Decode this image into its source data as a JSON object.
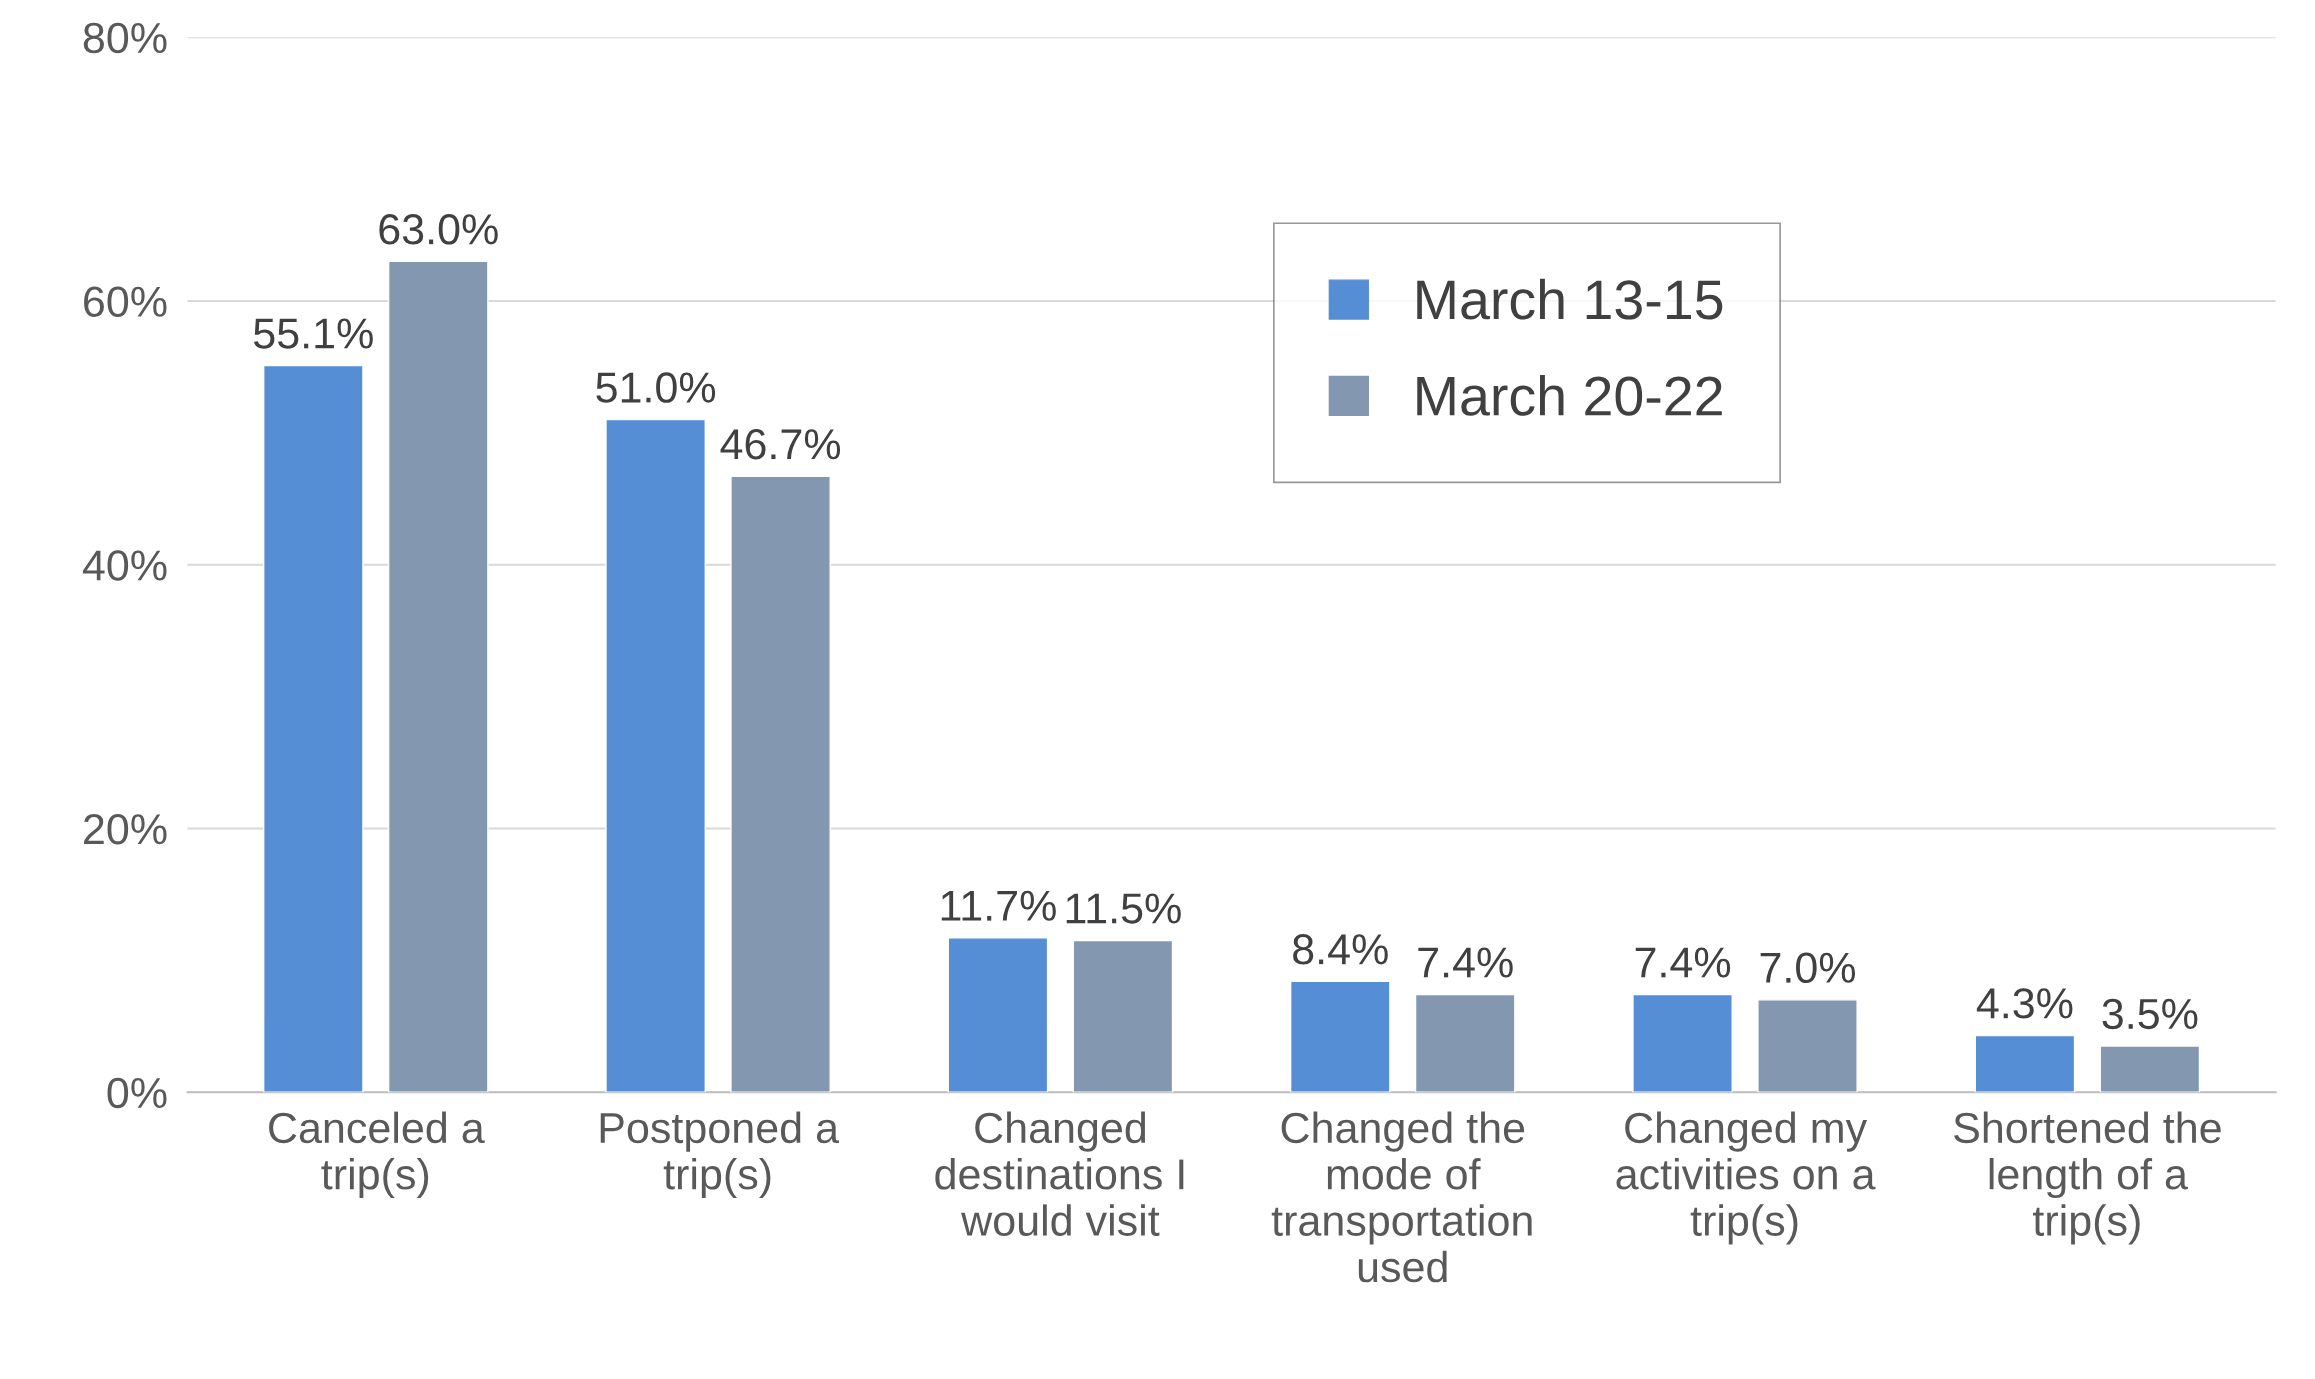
{
  "chart_data": {
    "type": "bar",
    "categories": [
      "Canceled a\ntrip(s)",
      "Postponed a\ntrip(s)",
      "Changed\ndestinations I\nwould visit",
      "Changed the\nmode of\ntransportation\nused",
      "Changed my\nactivities on a\ntrip(s)",
      "Shortened the\nlength of a\ntrip(s)"
    ],
    "series": [
      {
        "name": "March 13-15",
        "color": "#558ed5",
        "values": [
          55.1,
          51.0,
          11.7,
          8.4,
          7.4,
          4.3
        ],
        "value_labels": [
          "55.1%",
          "51.0%",
          "11.7%",
          "8.4%",
          "7.4%",
          "4.3%"
        ]
      },
      {
        "name": "March 20-22",
        "color": "#8497b0",
        "values": [
          63.0,
          46.7,
          11.5,
          7.4,
          7.0,
          3.5
        ],
        "value_labels": [
          "63.0%",
          "46.7%",
          "11.5%",
          "7.4%",
          "7.0%",
          "3.5%"
        ]
      }
    ],
    "ylim": [
      0,
      80
    ],
    "yticks": [
      {
        "value": 0,
        "label": "0%"
      },
      {
        "value": 20,
        "label": "20%"
      },
      {
        "value": 40,
        "label": "40%"
      },
      {
        "value": 60,
        "label": "60%"
      },
      {
        "value": 80,
        "label": "80%"
      }
    ],
    "grid": "y",
    "legend": "top right"
  }
}
